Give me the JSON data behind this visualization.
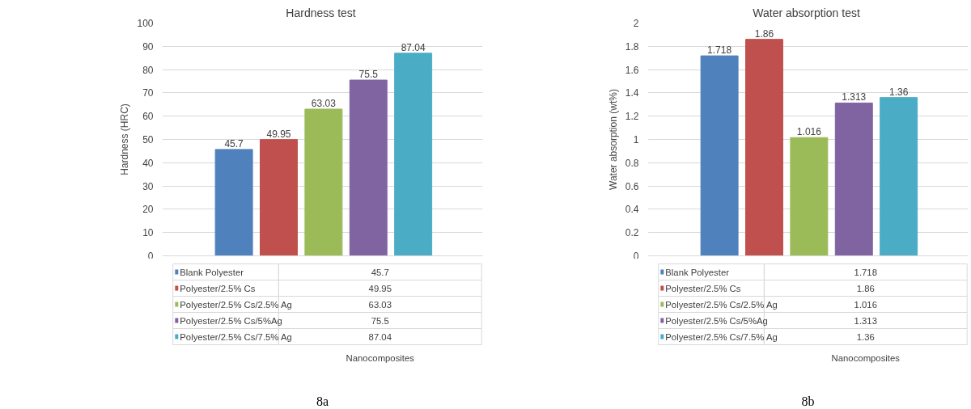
{
  "chart_data": [
    {
      "type": "bar",
      "title": "Hardness  test",
      "xlabel": "Nanocomposites",
      "ylabel": "Hardness (HRC)",
      "categories": [
        null
      ],
      "series": [
        {
          "name": "Blank Polyester",
          "color": "#4f81bd",
          "values": [
            45.7
          ]
        },
        {
          "name": "Polyester/2.5% Cs",
          "color": "#c0504d",
          "values": [
            49.95
          ]
        },
        {
          "name": "Polyester/2.5% Cs/2.5% Ag",
          "color": "#9bbb59",
          "values": [
            63.03
          ]
        },
        {
          "name": "Polyester/2.5% Cs/5%Ag",
          "color": "#8064a2",
          "values": [
            75.5
          ]
        },
        {
          "name": "Polyester/2.5% Cs/7.5% Ag",
          "color": "#4bacc6",
          "values": [
            87.04
          ]
        }
      ],
      "ylim": [
        0,
        100
      ],
      "yticks": [
        0,
        10,
        20,
        30,
        40,
        50,
        60,
        70,
        80,
        90,
        100
      ],
      "grid": "y",
      "legend": "bottom",
      "data_labels": true,
      "tick_labels": "y",
      "annotations": [
        "45.7",
        "49.95",
        "63.03",
        "75.5",
        "87.04",
        "8a"
      ]
    },
    {
      "type": "bar",
      "title": "Water absorption  test",
      "xlabel": "Nanocomposites",
      "ylabel": "Water absorption (wt%)",
      "categories": [
        null
      ],
      "series": [
        {
          "name": "Blank Polyester",
          "color": "#4f81bd",
          "values": [
            1.718
          ]
        },
        {
          "name": "Polyester/2.5% Cs",
          "color": "#c0504d",
          "values": [
            1.86
          ]
        },
        {
          "name": "Polyester/2.5% Cs/2.5% Ag",
          "color": "#9bbb59",
          "values": [
            1.016
          ]
        },
        {
          "name": "Polyester/2.5% Cs/5%Ag",
          "color": "#8064a2",
          "values": [
            1.313
          ]
        },
        {
          "name": "Polyester/2.5% Cs/7.5% Ag",
          "color": "#4bacc6",
          "values": [
            1.36
          ]
        }
      ],
      "ylim": [
        0,
        2
      ],
      "yticks": [
        0,
        0.2,
        0.4,
        0.6,
        0.8,
        1,
        1.2,
        1.4,
        1.6,
        1.8,
        2
      ],
      "grid": "y",
      "legend": "bottom",
      "data_labels": true,
      "tick_labels": "y",
      "annotations": [
        "1.718",
        "1.86",
        "1.016",
        "1.313",
        "1.36",
        "8b"
      ]
    }
  ]
}
